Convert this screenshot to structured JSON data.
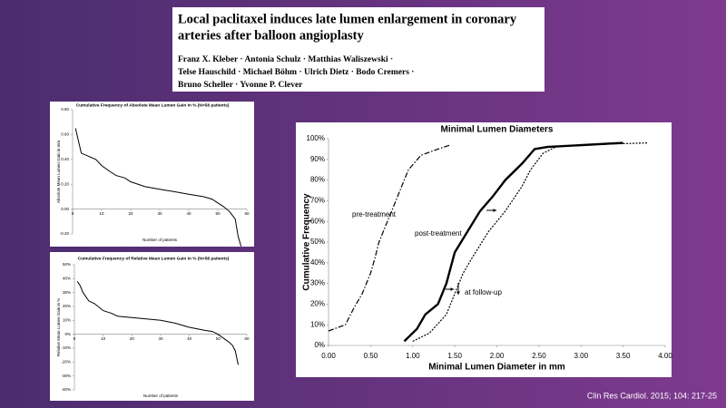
{
  "paper": {
    "title_lines": [
      "Local paclitaxel induces late lumen enlargement in coronary",
      "arteries after balloon angioplasty"
    ],
    "authors": [
      "Franz X. Kleber · Antonia Schulz · Matthias Waliszewski ·",
      "Telse Hauschild · Michael Böhm · Ulrich Dietz · Bodo Cremers ·",
      "Bruno Scheller · Yvonne P. Clever"
    ]
  },
  "citation": "Clin Res Cardiol. 2015; 104: 217-25",
  "chart_data": [
    {
      "type": "line",
      "title": "Cumulative Frequency of Absolute Mean Lumen Gain in % (N=58 patients)",
      "x_label": "Number of patients",
      "y_label": "Absolute Mean Lumen Gain in mm",
      "xlim": [
        0,
        60
      ],
      "xticks": [
        0,
        10,
        20,
        30,
        40,
        50,
        60
      ],
      "ylim": [
        -0.2,
        0.8
      ],
      "yticks": [
        {
          "value": -0.2,
          "label": "-0.20"
        },
        {
          "value": 0,
          "label": "0.00"
        },
        {
          "value": 0.2,
          "label": "0.20"
        },
        {
          "value": 0.4,
          "label": "0.40"
        },
        {
          "value": 0.6,
          "label": "0.60"
        },
        {
          "value": 0.8,
          "label": "0.80"
        }
      ],
      "series": [
        {
          "color": "#000000",
          "dash": "solid",
          "x": [
            1,
            2,
            3,
            5,
            8,
            10,
            13,
            15,
            18,
            20,
            25,
            30,
            35,
            40,
            45,
            48,
            50,
            52,
            54,
            56,
            57,
            58
          ],
          "values": [
            0.65,
            0.55,
            0.45,
            0.43,
            0.4,
            0.35,
            0.3,
            0.27,
            0.25,
            0.22,
            0.18,
            0.16,
            0.14,
            0.12,
            0.1,
            0.08,
            0.05,
            0.02,
            -0.02,
            -0.08,
            -0.22,
            -0.3
          ]
        }
      ]
    },
    {
      "type": "line",
      "title": "Cumulative Frequency of Relative Mean Lumen Gain in % (N=58 patients)",
      "x_label": "Number of patients",
      "y_label": "Relative Mean Lumen Gain in %",
      "xlim": [
        0,
        60
      ],
      "xticks": [
        0,
        10,
        20,
        30,
        40,
        50,
        60
      ],
      "ylim": [
        -40,
        50
      ],
      "yticks": [
        {
          "value": -40,
          "label": "-40%"
        },
        {
          "value": -30,
          "label": "-30%"
        },
        {
          "value": -20,
          "label": "-20%"
        },
        {
          "value": -10,
          "label": "-10%"
        },
        {
          "value": 0,
          "label": "0%"
        },
        {
          "value": 10,
          "label": "10%"
        },
        {
          "value": 20,
          "label": "20%"
        },
        {
          "value": 30,
          "label": "30%"
        },
        {
          "value": 40,
          "label": "40%"
        },
        {
          "value": 50,
          "label": "50%"
        }
      ],
      "series": [
        {
          "color": "#000000",
          "dash": "solid",
          "x": [
            1,
            2,
            3,
            5,
            7,
            10,
            13,
            15,
            20,
            25,
            30,
            35,
            40,
            45,
            48,
            50,
            52,
            54,
            55,
            56,
            57
          ],
          "values": [
            38,
            35,
            30,
            24,
            22,
            17,
            15,
            13,
            12,
            11,
            10,
            8,
            5,
            3,
            2,
            0,
            -3,
            -6,
            -8,
            -12,
            -22
          ]
        }
      ]
    },
    {
      "type": "line",
      "title": "Minimal Lumen Diameters",
      "x_label": "Minimal Lumen Diameter in mm",
      "y_label": "Cumulative  Frequency",
      "xlim": [
        0,
        4
      ],
      "xticks": [
        {
          "value": 0,
          "label": "0.00"
        },
        {
          "value": 0.5,
          "label": "0.50"
        },
        {
          "value": 1,
          "label": "1.00"
        },
        {
          "value": 1.5,
          "label": "1.50"
        },
        {
          "value": 2,
          "label": "2.00"
        },
        {
          "value": 2.5,
          "label": "2.50"
        },
        {
          "value": 3,
          "label": "3.00"
        },
        {
          "value": 3.5,
          "label": "3.50"
        },
        {
          "value": 4,
          "label": "4.00"
        }
      ],
      "ylim": [
        0,
        100
      ],
      "yticks": [
        {
          "value": 0,
          "label": "0%"
        },
        {
          "value": 10,
          "label": "10%"
        },
        {
          "value": 20,
          "label": "20%"
        },
        {
          "value": 30,
          "label": "30%"
        },
        {
          "value": 40,
          "label": "40%"
        },
        {
          "value": 50,
          "label": "50%"
        },
        {
          "value": 60,
          "label": "60%"
        },
        {
          "value": 70,
          "label": "70%"
        },
        {
          "value": 80,
          "label": "80%"
        },
        {
          "value": 90,
          "label": "90%"
        },
        {
          "value": 100,
          "label": "100%"
        }
      ],
      "series": [
        {
          "name": "pre-treatment",
          "color": "#000000",
          "dash": "dash-dot",
          "x": [
            0,
            0.2,
            0.3,
            0.4,
            0.5,
            0.55,
            0.6,
            0.7,
            0.75,
            0.85,
            0.95,
            1.1,
            1.3,
            1.45
          ],
          "values": [
            7,
            10,
            18,
            25,
            35,
            42,
            50,
            60,
            65,
            75,
            85,
            92,
            95,
            97
          ]
        },
        {
          "name": "post-treatment",
          "color": "#000000",
          "dash": "solid",
          "x": [
            0.9,
            1.05,
            1.15,
            1.3,
            1.4,
            1.5,
            1.65,
            1.8,
            1.95,
            2.1,
            2.3,
            2.45,
            2.6,
            3.5
          ],
          "values": [
            2,
            8,
            15,
            20,
            30,
            45,
            55,
            65,
            72,
            80,
            88,
            95,
            96,
            98
          ]
        },
        {
          "name": "at follow-up",
          "color": "#000000",
          "dash": "dotted",
          "x": [
            1,
            1.2,
            1.4,
            1.5,
            1.6,
            1.7,
            1.9,
            2.1,
            2.3,
            2.4,
            2.55,
            2.7,
            3,
            3.8
          ],
          "values": [
            2,
            6,
            15,
            25,
            35,
            42,
            55,
            65,
            77,
            85,
            93,
            96,
            97,
            98
          ]
        }
      ]
    }
  ]
}
